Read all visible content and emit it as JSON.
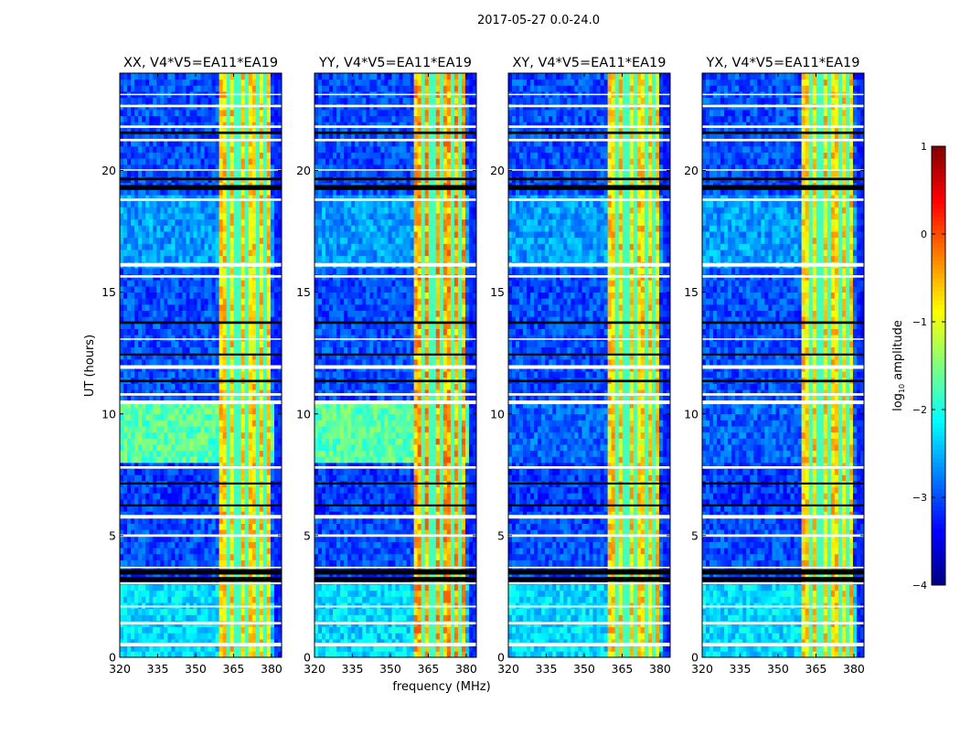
{
  "chart_data": {
    "type": "heatmap",
    "title": "2017-05-27 0.0-24.0",
    "xlabel": "frequency (MHz)",
    "ylabel": "UT (hours)",
    "xlim": [
      320,
      384
    ],
    "ylim": [
      0,
      24
    ],
    "xticks": [
      "320",
      "335",
      "350",
      "365",
      "380"
    ],
    "xtick_values": [
      320,
      335,
      350,
      365,
      380
    ],
    "yticks": [
      "0",
      "5",
      "10",
      "15",
      "20"
    ],
    "ytick_values": [
      0,
      5,
      10,
      15,
      20
    ],
    "panels": [
      {
        "title": "XX, V4*V5=EA11*EA19",
        "green_block": true
      },
      {
        "title": "YY, V4*V5=EA11*EA19",
        "green_block": true
      },
      {
        "title": "XY, V4*V5=EA11*EA19",
        "green_block": false
      },
      {
        "title": "YX, V4*V5=EA11*EA19",
        "green_block": false
      }
    ],
    "background_levels": [
      {
        "ut": [
          0,
          3.0
        ],
        "log_amp": -2.3
      },
      {
        "ut": [
          3.7,
          5.8
        ],
        "log_amp": -3.0
      },
      {
        "ut": [
          5.8,
          8.0
        ],
        "log_amp": -3.1
      },
      {
        "ut": [
          8.0,
          10.4
        ],
        "log_amp": -1.7,
        "cross_pol_log_amp": -2.9
      },
      {
        "ut": [
          10.6,
          16.0
        ],
        "log_amp": -3.0
      },
      {
        "ut": [
          16.0,
          19.0
        ],
        "log_amp": -2.6
      },
      {
        "ut": [
          19.0,
          24.0
        ],
        "log_amp": -3.0
      }
    ],
    "rfi_band": {
      "freq_mhz": [
        360,
        380
      ],
      "log_amp": -0.7,
      "dips_mhz": [
        363,
        366.5,
        370.5,
        374.5,
        377
      ]
    },
    "flagged_white_ut": [
      [
        0.45,
        0.6
      ],
      [
        1.35,
        1.45
      ],
      [
        2.05,
        2.12
      ],
      [
        3.0,
        3.08
      ],
      [
        3.66,
        3.72
      ],
      [
        4.95,
        5.05
      ],
      [
        5.7,
        5.85
      ],
      [
        7.75,
        7.85
      ],
      [
        10.4,
        10.55
      ],
      [
        10.75,
        10.85
      ],
      [
        11.85,
        12.0
      ],
      [
        13.05,
        13.1
      ],
      [
        15.6,
        15.7
      ],
      [
        16.05,
        16.2
      ],
      [
        18.75,
        18.85
      ],
      [
        20.0,
        20.05
      ],
      [
        21.2,
        21.3
      ],
      [
        21.75,
        21.85
      ],
      [
        22.6,
        22.7
      ],
      [
        23.1,
        23.15
      ]
    ],
    "flagged_black_ut": [
      [
        3.1,
        3.3
      ],
      [
        3.4,
        3.62
      ],
      [
        6.2,
        6.28
      ],
      [
        7.1,
        7.18
      ],
      [
        11.3,
        11.4
      ],
      [
        12.4,
        12.48
      ],
      [
        13.7,
        13.8
      ],
      [
        19.2,
        19.4
      ],
      [
        19.6,
        19.7
      ],
      [
        21.5,
        21.6
      ]
    ],
    "colorbar": {
      "label": "log10 amplitude",
      "label_main": "log",
      "label_sub": "10",
      "label_rest": " amplitude",
      "range": [
        -4,
        1
      ],
      "ticks": [
        "1",
        "0",
        "−1",
        "−2",
        "−3",
        "−4"
      ],
      "tick_values": [
        1,
        0,
        -1,
        -2,
        -3,
        -4
      ],
      "colormap": "jet"
    }
  }
}
